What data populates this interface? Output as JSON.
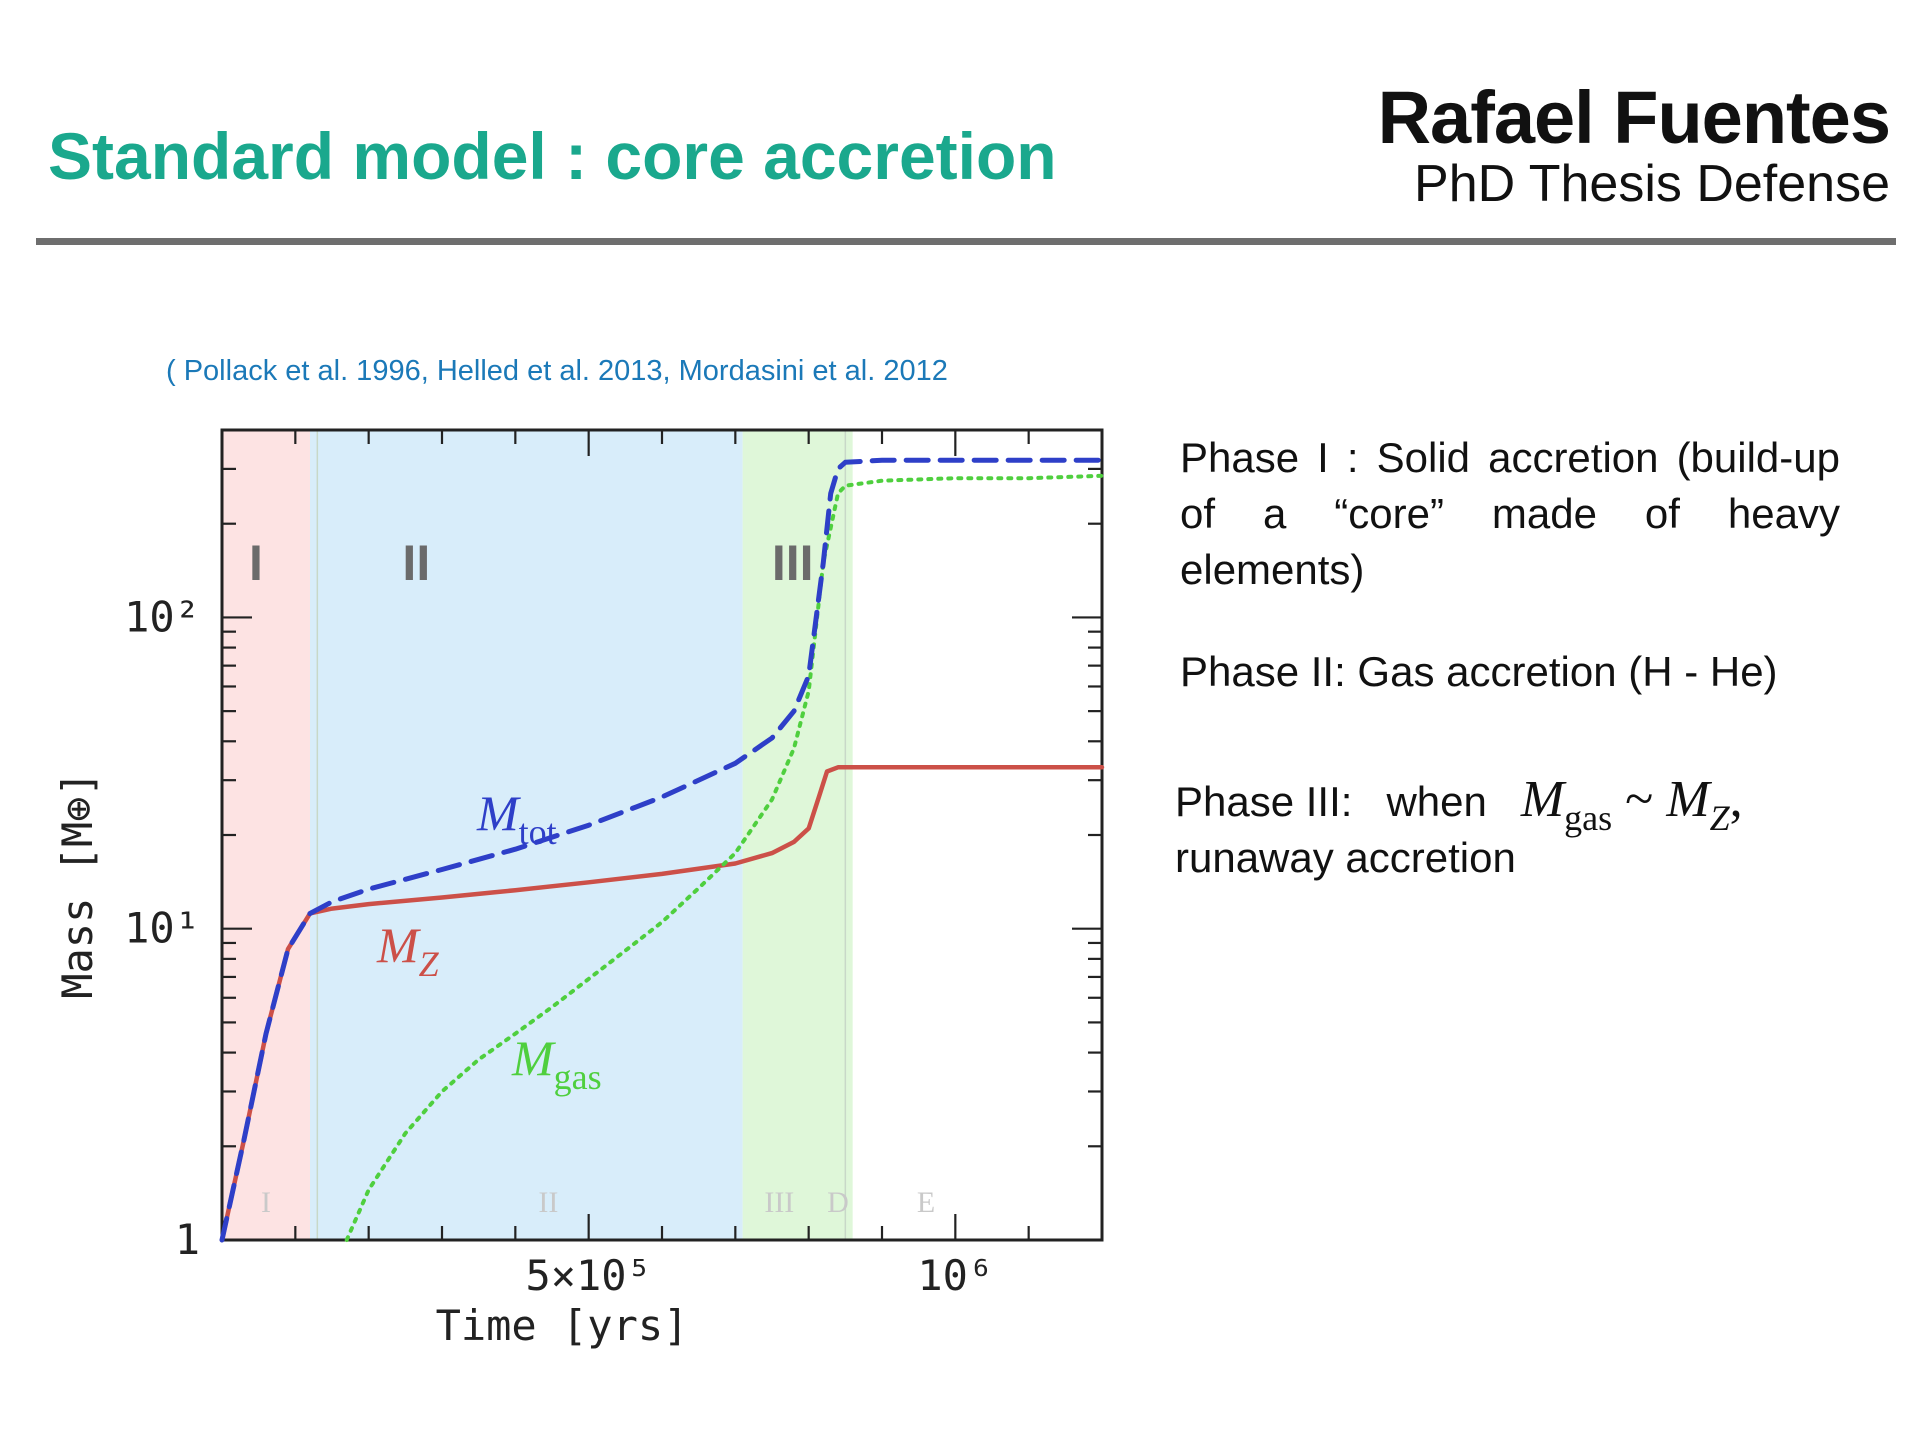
{
  "header": {
    "title": "Standard model : core accretion",
    "author": "Rafael Fuentes",
    "subtitle": "PhD Thesis Defense"
  },
  "citation": "( Pollack et al. 1996, Helled et al. 2013, Mordasini et al. 2012",
  "phases_text": {
    "phase1": "Phase I : Solid accretion (build-up of a “core” made of heavy elements)",
    "phase2": "Phase II: Gas accretion (H - He)",
    "phase3_prefix": "Phase III:",
    "phase3_when": "when",
    "phase3_math_left": "M",
    "phase3_math_left_sub": "gas",
    "phase3_tilde": "~",
    "phase3_math_right": "M",
    "phase3_math_right_sub": "Z",
    "phase3_comma": ",",
    "phase3_suffix": "runaway accretion"
  },
  "chart_data": {
    "type": "line",
    "xlabel": "Time [yrs]",
    "ylabel": "Mass [M⊕]",
    "xlim": [
      0,
      1200000
    ],
    "ylim": [
      1,
      400
    ],
    "yscale": "log",
    "x_tick_labels": [
      {
        "value": 500000,
        "label": "5×10⁵"
      },
      {
        "value": 1000000,
        "label": "10⁶"
      }
    ],
    "y_tick_labels": [
      {
        "value": 1,
        "label": "1"
      },
      {
        "value": 10,
        "label": "10¹"
      },
      {
        "value": 100,
        "label": "10²"
      }
    ],
    "phase_bands": [
      {
        "label": "I",
        "x0": 0,
        "x1": 120000,
        "color": "#fde3e3"
      },
      {
        "label": "II",
        "x0": 120000,
        "x1": 710000,
        "color": "#d8edfa"
      },
      {
        "label": "III",
        "x0": 710000,
        "x1": 860000,
        "color": "#dff7d9"
      }
    ],
    "band_labels_bottom": [
      {
        "label": "I",
        "x": 60000
      },
      {
        "label": "II",
        "x": 445000
      },
      {
        "label": "III",
        "x": 760000
      },
      {
        "label": "D",
        "x": 840000
      },
      {
        "label": "E",
        "x": 960000
      }
    ],
    "series": [
      {
        "name": "M_tot",
        "label_main": "M",
        "label_sub": "tot",
        "color": "#2e3fc8",
        "style": "dashed",
        "x": [
          0,
          30000,
          60000,
          90000,
          120000,
          150000,
          200000,
          300000,
          400000,
          500000,
          600000,
          700000,
          750000,
          780000,
          800000,
          820000,
          830000,
          840000,
          850000,
          900000,
          1000000,
          1100000,
          1200000
        ],
        "y": [
          1,
          2.1,
          4.6,
          8.6,
          11.2,
          12.2,
          13.4,
          15.5,
          18.0,
          21.5,
          26.5,
          34.0,
          41.0,
          50.0,
          65.0,
          150.0,
          250.0,
          300.0,
          315.0,
          320.0,
          320.0,
          320.0,
          320.0
        ]
      },
      {
        "name": "M_Z",
        "label_main": "M",
        "label_sub": "Z",
        "color": "#cc5048",
        "style": "solid",
        "x": [
          0,
          30000,
          60000,
          90000,
          120000,
          150000,
          200000,
          300000,
          400000,
          500000,
          600000,
          700000,
          750000,
          780000,
          800000,
          815000,
          825000,
          840000,
          900000,
          1000000,
          1100000,
          1200000
        ],
        "y": [
          1,
          2.1,
          4.6,
          8.6,
          11.2,
          11.6,
          12.0,
          12.6,
          13.3,
          14.1,
          15.0,
          16.2,
          17.5,
          19.0,
          21.0,
          27.0,
          32.0,
          33.0,
          33.0,
          33.0,
          33.0,
          33.0
        ]
      },
      {
        "name": "M_gas",
        "label_main": "M",
        "label_sub": "gas",
        "color": "#4fcf3e",
        "style": "dotted",
        "x": [
          170000,
          200000,
          250000,
          300000,
          350000,
          400000,
          450000,
          500000,
          550000,
          600000,
          650000,
          700000,
          750000,
          780000,
          800000,
          820000,
          840000,
          850000,
          900000,
          1000000,
          1100000,
          1200000
        ],
        "y": [
          1,
          1.45,
          2.2,
          3.0,
          3.8,
          4.6,
          5.6,
          6.9,
          8.5,
          10.5,
          13.5,
          17.5,
          26.0,
          38.0,
          58.0,
          150.0,
          250.0,
          265.0,
          275.0,
          280.0,
          280.0,
          285.0
        ]
      }
    ]
  }
}
